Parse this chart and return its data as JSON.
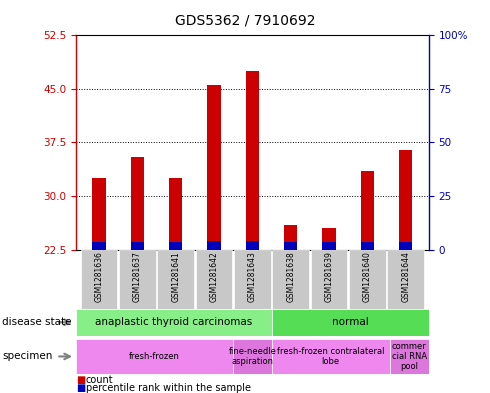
{
  "title": "GDS5362 / 7910692",
  "samples": [
    "GSM1281636",
    "GSM1281637",
    "GSM1281641",
    "GSM1281642",
    "GSM1281643",
    "GSM1281638",
    "GSM1281639",
    "GSM1281640",
    "GSM1281644"
  ],
  "count_values": [
    32.5,
    35.5,
    32.5,
    45.5,
    47.5,
    26.0,
    25.5,
    33.5,
    36.5
  ],
  "percentile_heights": [
    1.0,
    1.0,
    1.0,
    1.2,
    1.2,
    1.0,
    1.0,
    1.0,
    1.0
  ],
  "ymin": 22.5,
  "ymax": 52.5,
  "yticks_left": [
    22.5,
    30.0,
    37.5,
    45.0,
    52.5
  ],
  "yticks_right": [
    0,
    25,
    50,
    75,
    100
  ],
  "bar_width": 0.35,
  "count_color": "#cc0000",
  "percentile_color": "#0000bb",
  "disease_state_groups": [
    {
      "label": "anaplastic thyroid carcinomas",
      "start": 0,
      "end": 5,
      "color": "#88ee88"
    },
    {
      "label": "normal",
      "start": 5,
      "end": 9,
      "color": "#55dd55"
    }
  ],
  "specimen_groups": [
    {
      "label": "fresh-frozen",
      "start": 0,
      "end": 4,
      "color": "#ee88ee"
    },
    {
      "label": "fine-needle\naspiration",
      "start": 4,
      "end": 5,
      "color": "#dd77dd"
    },
    {
      "label": "fresh-frozen contralateral\nlobe",
      "start": 5,
      "end": 8,
      "color": "#ee88ee"
    },
    {
      "label": "commer\ncial RNA\npool",
      "start": 8,
      "end": 9,
      "color": "#dd77dd"
    }
  ],
  "disease_label": "disease state",
  "specimen_label": "specimen",
  "legend_count": "count",
  "legend_percentile": "percentile rank within the sample",
  "xticklabel_bg": "#c8c8c8",
  "plot_bg": "#ffffff",
  "axis_color_left": "#cc0000",
  "axis_color_right": "#0000bb"
}
